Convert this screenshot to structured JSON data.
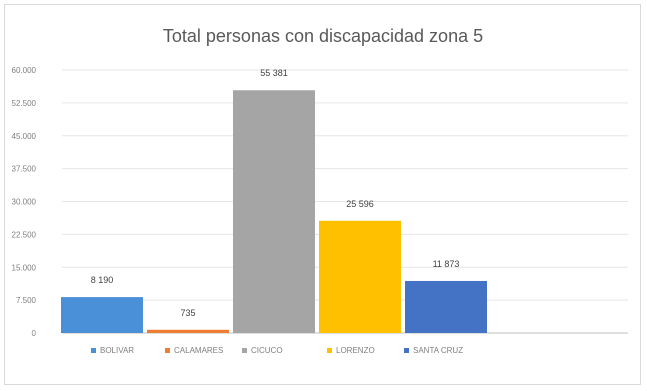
{
  "chart_data": {
    "type": "bar",
    "title": "Total personas con discapacidad zona 5",
    "categories": [
      "BOLIVAR",
      "CALAMARES",
      "CICUCO",
      "LORENZO",
      "SANTA CRUZ"
    ],
    "values": [
      8190,
      735,
      55381,
      25596,
      11873
    ],
    "data_labels": [
      "8 190",
      "735",
      "55 381",
      "25 596",
      "11 873"
    ],
    "colors": [
      "#4a90d9",
      "#ed7d31",
      "#a5a5a5",
      "#ffc000",
      "#4472c4"
    ],
    "ylim": [
      0,
      60000
    ],
    "yticks": [
      0,
      7500,
      15000,
      22500,
      30000,
      37500,
      45000,
      52500,
      60000
    ],
    "ytick_labels": [
      "0",
      "7.500",
      "15.000",
      "22.500",
      "30.000",
      "37.500",
      "45.000",
      "52.500",
      "60.000"
    ],
    "grid": true,
    "legend_position": "bottom"
  }
}
